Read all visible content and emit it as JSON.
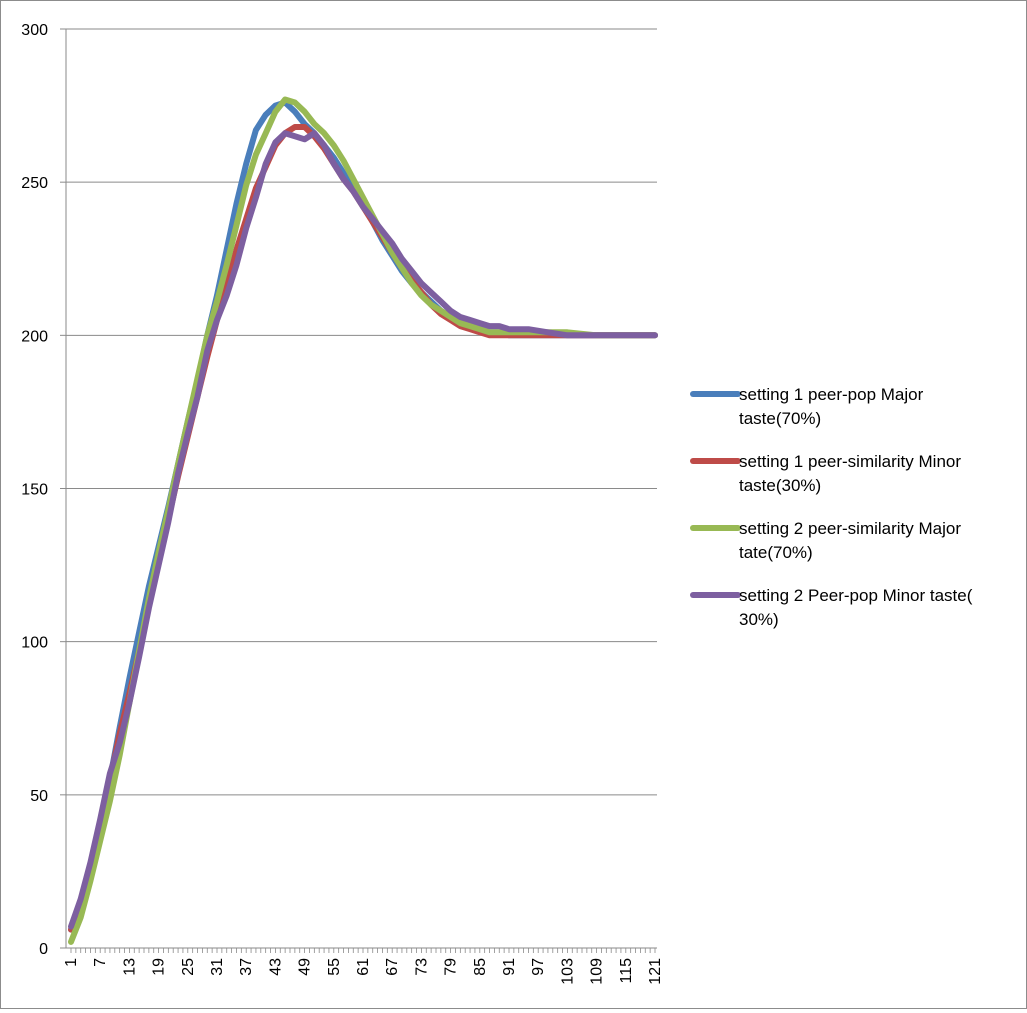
{
  "chart_data": {
    "type": "line",
    "title": "",
    "xlabel": "",
    "ylabel": "",
    "ylim": [
      0,
      300
    ],
    "yticks": [
      0,
      50,
      100,
      150,
      200,
      250,
      300
    ],
    "xlim": [
      1,
      121
    ],
    "xticks": [
      1,
      7,
      13,
      19,
      25,
      31,
      37,
      43,
      49,
      55,
      61,
      67,
      73,
      79,
      85,
      91,
      97,
      103,
      109,
      115,
      121
    ],
    "grid": "horizontal",
    "legend_position": "right",
    "series": [
      {
        "name": "setting 1 peer-pop Major taste(70%)",
        "color": "#4a7ebb",
        "points": [
          [
            1,
            6
          ],
          [
            3,
            15
          ],
          [
            5,
            27
          ],
          [
            7,
            40
          ],
          [
            9,
            55
          ],
          [
            11,
            72
          ],
          [
            13,
            88
          ],
          [
            15,
            103
          ],
          [
            17,
            118
          ],
          [
            19,
            131
          ],
          [
            21,
            144
          ],
          [
            23,
            158
          ],
          [
            25,
            172
          ],
          [
            27,
            185
          ],
          [
            29,
            200
          ],
          [
            31,
            213
          ],
          [
            33,
            228
          ],
          [
            35,
            243
          ],
          [
            37,
            256
          ],
          [
            39,
            267
          ],
          [
            41,
            272
          ],
          [
            43,
            275
          ],
          [
            45,
            276
          ],
          [
            47,
            273
          ],
          [
            49,
            269
          ],
          [
            51,
            266
          ],
          [
            53,
            262
          ],
          [
            55,
            258
          ],
          [
            57,
            253
          ],
          [
            59,
            248
          ],
          [
            61,
            243
          ],
          [
            63,
            237
          ],
          [
            65,
            231
          ],
          [
            67,
            226
          ],
          [
            69,
            221
          ],
          [
            71,
            217
          ],
          [
            73,
            214
          ],
          [
            75,
            211
          ],
          [
            77,
            208
          ],
          [
            79,
            206
          ],
          [
            81,
            204
          ],
          [
            83,
            203
          ],
          [
            85,
            202
          ],
          [
            87,
            201
          ],
          [
            89,
            201
          ],
          [
            91,
            200
          ],
          [
            95,
            200
          ],
          [
            99,
            200
          ],
          [
            103,
            200
          ],
          [
            109,
            200
          ],
          [
            115,
            200
          ],
          [
            121,
            200
          ]
        ]
      },
      {
        "name": "setting 1 peer-similarity Minor taste(30%)",
        "color": "#be4b48",
        "points": [
          [
            1,
            6
          ],
          [
            3,
            15
          ],
          [
            5,
            27
          ],
          [
            7,
            40
          ],
          [
            9,
            55
          ],
          [
            11,
            70
          ],
          [
            13,
            83
          ],
          [
            15,
            97
          ],
          [
            17,
            112
          ],
          [
            19,
            126
          ],
          [
            21,
            140
          ],
          [
            23,
            154
          ],
          [
            25,
            167
          ],
          [
            27,
            180
          ],
          [
            29,
            193
          ],
          [
            31,
            205
          ],
          [
            33,
            216
          ],
          [
            35,
            228
          ],
          [
            37,
            238
          ],
          [
            39,
            248
          ],
          [
            41,
            255
          ],
          [
            43,
            262
          ],
          [
            45,
            266
          ],
          [
            47,
            268
          ],
          [
            49,
            268
          ],
          [
            51,
            265
          ],
          [
            53,
            261
          ],
          [
            55,
            256
          ],
          [
            57,
            251
          ],
          [
            59,
            247
          ],
          [
            61,
            242
          ],
          [
            63,
            237
          ],
          [
            65,
            232
          ],
          [
            67,
            227
          ],
          [
            69,
            222
          ],
          [
            71,
            218
          ],
          [
            73,
            214
          ],
          [
            75,
            210
          ],
          [
            77,
            207
          ],
          [
            79,
            205
          ],
          [
            81,
            203
          ],
          [
            83,
            202
          ],
          [
            85,
            201
          ],
          [
            87,
            200
          ],
          [
            89,
            200
          ],
          [
            91,
            200
          ],
          [
            95,
            200
          ],
          [
            99,
            200
          ],
          [
            103,
            200
          ],
          [
            109,
            200
          ],
          [
            115,
            200
          ],
          [
            121,
            200
          ]
        ]
      },
      {
        "name": "setting 2 peer-similarity Major tate(70%)",
        "color": "#98b954",
        "points": [
          [
            1,
            2
          ],
          [
            3,
            10
          ],
          [
            5,
            22
          ],
          [
            7,
            35
          ],
          [
            9,
            48
          ],
          [
            11,
            63
          ],
          [
            13,
            80
          ],
          [
            15,
            97
          ],
          [
            17,
            114
          ],
          [
            19,
            129
          ],
          [
            21,
            143
          ],
          [
            23,
            158
          ],
          [
            25,
            172
          ],
          [
            27,
            186
          ],
          [
            29,
            200
          ],
          [
            31,
            211
          ],
          [
            33,
            223
          ],
          [
            35,
            236
          ],
          [
            37,
            249
          ],
          [
            39,
            259
          ],
          [
            41,
            266
          ],
          [
            43,
            273
          ],
          [
            45,
            277
          ],
          [
            47,
            276
          ],
          [
            49,
            273
          ],
          [
            51,
            269
          ],
          [
            53,
            266
          ],
          [
            55,
            262
          ],
          [
            57,
            257
          ],
          [
            59,
            251
          ],
          [
            61,
            245
          ],
          [
            63,
            239
          ],
          [
            65,
            233
          ],
          [
            67,
            227
          ],
          [
            69,
            222
          ],
          [
            71,
            217
          ],
          [
            73,
            213
          ],
          [
            75,
            210
          ],
          [
            77,
            208
          ],
          [
            79,
            206
          ],
          [
            81,
            204
          ],
          [
            83,
            203
          ],
          [
            85,
            202
          ],
          [
            87,
            201
          ],
          [
            89,
            201
          ],
          [
            91,
            201
          ],
          [
            95,
            201
          ],
          [
            99,
            201
          ],
          [
            103,
            201
          ],
          [
            109,
            200
          ],
          [
            115,
            200
          ],
          [
            121,
            200
          ]
        ]
      },
      {
        "name": "setting 2 Peer-pop Minor taste( 30%)",
        "color": "#7d5fa0",
        "points": [
          [
            1,
            7
          ],
          [
            3,
            16
          ],
          [
            5,
            28
          ],
          [
            7,
            42
          ],
          [
            9,
            57
          ],
          [
            11,
            67
          ],
          [
            13,
            80
          ],
          [
            15,
            95
          ],
          [
            17,
            111
          ],
          [
            19,
            125
          ],
          [
            21,
            139
          ],
          [
            23,
            155
          ],
          [
            25,
            168
          ],
          [
            27,
            180
          ],
          [
            29,
            195
          ],
          [
            31,
            205
          ],
          [
            33,
            213
          ],
          [
            35,
            223
          ],
          [
            37,
            235
          ],
          [
            39,
            245
          ],
          [
            41,
            256
          ],
          [
            43,
            263
          ],
          [
            45,
            266
          ],
          [
            47,
            265
          ],
          [
            49,
            264
          ],
          [
            51,
            266
          ],
          [
            53,
            262
          ],
          [
            55,
            256
          ],
          [
            57,
            251
          ],
          [
            59,
            247
          ],
          [
            61,
            242
          ],
          [
            63,
            238
          ],
          [
            65,
            234
          ],
          [
            67,
            230
          ],
          [
            69,
            225
          ],
          [
            71,
            221
          ],
          [
            73,
            217
          ],
          [
            75,
            214
          ],
          [
            77,
            211
          ],
          [
            79,
            208
          ],
          [
            81,
            206
          ],
          [
            83,
            205
          ],
          [
            85,
            204
          ],
          [
            87,
            203
          ],
          [
            89,
            203
          ],
          [
            91,
            202
          ],
          [
            95,
            202
          ],
          [
            99,
            201
          ],
          [
            103,
            200
          ],
          [
            109,
            200
          ],
          [
            115,
            200
          ],
          [
            121,
            200
          ]
        ]
      }
    ]
  }
}
